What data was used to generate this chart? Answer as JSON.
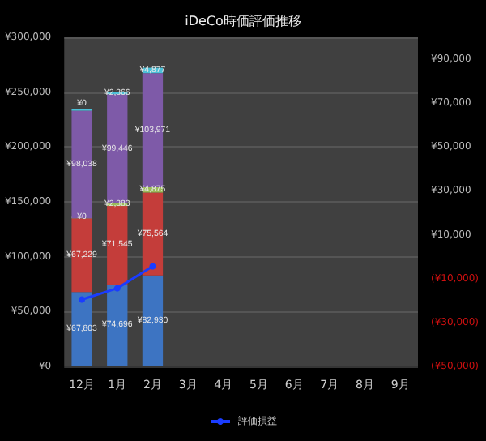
{
  "chart_data": {
    "type": "bar",
    "title": "iDeCo時価評価推移",
    "categories": [
      "12月",
      "1月",
      "2月",
      "3月",
      "4月",
      "5月",
      "6月",
      "7月",
      "8月",
      "9月"
    ],
    "stacked": true,
    "series": [
      {
        "color": "#3d74c2",
        "values": [
          67803,
          74696,
          82930,
          null,
          null,
          null,
          null,
          null,
          null,
          null
        ],
        "value_labels": [
          "¥67,803",
          "¥74,696",
          "¥82,930",
          null,
          null,
          null,
          null,
          null,
          null,
          null
        ]
      },
      {
        "color": "#c43d3a",
        "values": [
          67229,
          71545,
          75564,
          null,
          null,
          null,
          null,
          null,
          null,
          null
        ],
        "value_labels": [
          "¥67,229",
          "¥71,545",
          "¥75,564",
          null,
          null,
          null,
          null,
          null,
          null,
          null
        ]
      },
      {
        "color": "#9bbb59",
        "values": [
          0,
          2383,
          4875,
          null,
          null,
          null,
          null,
          null,
          null,
          null
        ],
        "value_labels": [
          "¥0",
          "¥2,383",
          "¥4,875",
          null,
          null,
          null,
          null,
          null,
          null,
          null
        ]
      },
      {
        "color": "#7e5aa8",
        "values": [
          98038,
          99446,
          103971,
          null,
          null,
          null,
          null,
          null,
          null,
          null
        ],
        "value_labels": [
          "¥98,038",
          "¥99,446",
          "¥103,971",
          null,
          null,
          null,
          null,
          null,
          null,
          null
        ]
      },
      {
        "color": "#4bc0d8",
        "values": [
          0,
          2366,
          4877,
          null,
          null,
          null,
          null,
          null,
          null,
          null
        ],
        "value_labels": [
          "¥0",
          "¥2,366",
          "¥4,877",
          null,
          null,
          null,
          null,
          null,
          null,
          null
        ]
      },
      {
        "type": "line",
        "name": "評価損益",
        "axis": "y2",
        "color": "#1a3cff",
        "marker": "circle",
        "values": [
          -19500,
          -14400,
          -4400,
          null,
          null,
          null,
          null,
          null,
          null,
          null
        ]
      }
    ],
    "ylim": [
      0,
      300000
    ],
    "yticks": [
      {
        "value": 0,
        "label": "¥0"
      },
      {
        "value": 50000,
        "label": "¥50,000"
      },
      {
        "value": 100000,
        "label": "¥100,000"
      },
      {
        "value": 150000,
        "label": "¥150,000"
      },
      {
        "value": 200000,
        "label": "¥200,000"
      },
      {
        "value": 250000,
        "label": "¥250,000"
      },
      {
        "value": 300000,
        "label": "¥300,000"
      }
    ],
    "y2lim": [
      -50000,
      100000
    ],
    "y2ticks": [
      {
        "value": -50000,
        "label": "(¥50,000)"
      },
      {
        "value": -30000,
        "label": "(¥30,000)"
      },
      {
        "value": -10000,
        "label": "(¥10,000)"
      },
      {
        "value": 10000,
        "label": "¥10,000"
      },
      {
        "value": 30000,
        "label": "¥30,000"
      },
      {
        "value": 50000,
        "label": "¥50,000"
      },
      {
        "value": 70000,
        "label": "¥70,000"
      },
      {
        "value": 90000,
        "label": "¥90,000"
      }
    ],
    "grid": "y",
    "legend": "bottom"
  }
}
